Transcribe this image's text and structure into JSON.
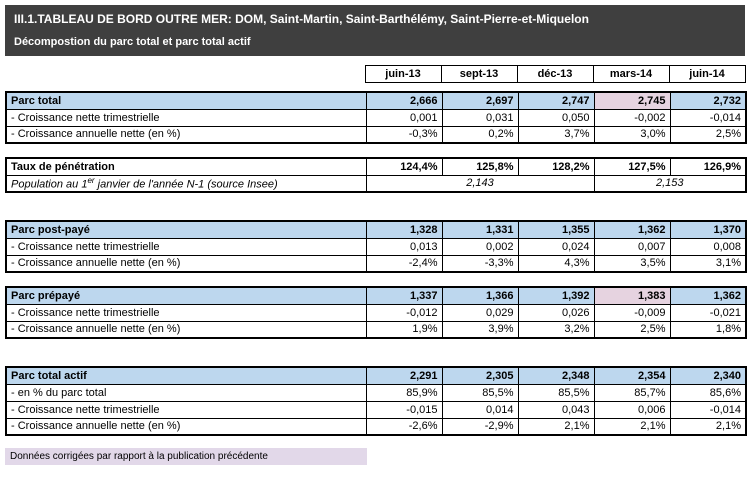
{
  "page": {
    "title": "III.1.TABLEAU DE BORD OUTRE MER: DOM, Saint-Martin, Saint-Barthélémy, Saint-Pierre-et-Miquelon",
    "subtitle": "Décompostion du parc total et parc total actif",
    "footnote": "Données corrigées par rapport à la publication précédente"
  },
  "columns": [
    "juin-13",
    "sept-13",
    "déc-13",
    "mars-14",
    "juin-14"
  ],
  "colors": {
    "title_bg": "#3f3f3f",
    "section_header_bg": "#bdd7ee",
    "corrected_cell_bg": "#e6d3e0",
    "footnote_bg": "#e2d8e9",
    "border": "#000000"
  },
  "parc_total": {
    "label": "Parc total",
    "values": [
      "2,666",
      "2,697",
      "2,747",
      "2,745",
      "2,732"
    ],
    "corrected_column": "mars-14",
    "rows": [
      {
        "label": "- Croissance nette trimestrielle",
        "values": [
          "0,001",
          "0,031",
          "0,050",
          "-0,002",
          "-0,014"
        ]
      },
      {
        "label": "- Croissance annuelle nette (en %)",
        "values": [
          "-0,3%",
          "0,2%",
          "3,7%",
          "3,0%",
          "2,5%"
        ]
      }
    ]
  },
  "taux_penetration": {
    "label": "Taux de pénétration",
    "values": [
      "124,4%",
      "125,8%",
      "128,2%",
      "127,5%",
      "126,9%"
    ],
    "population": {
      "label_prefix": "Population au 1",
      "label_sup": "er",
      "label_suffix": " janvier de l'année N-1 (source Insee)",
      "value_2013": "2,143",
      "value_2014": "2,153"
    }
  },
  "parc_post_paye": {
    "label": "Parc post-payé",
    "values": [
      "1,328",
      "1,331",
      "1,355",
      "1,362",
      "1,370"
    ],
    "rows": [
      {
        "label": "- Croissance nette trimestrielle",
        "values": [
          "0,013",
          "0,002",
          "0,024",
          "0,007",
          "0,008"
        ]
      },
      {
        "label": "- Croissance annuelle nette (en %)",
        "values": [
          "-2,4%",
          "-3,3%",
          "4,3%",
          "3,5%",
          "3,1%"
        ]
      }
    ]
  },
  "parc_prepaye": {
    "label": "Parc prépayé",
    "values": [
      "1,337",
      "1,366",
      "1,392",
      "1,383",
      "1,362"
    ],
    "corrected_column": "mars-14",
    "rows": [
      {
        "label": "- Croissance nette trimestrielle",
        "values": [
          "-0,012",
          "0,029",
          "0,026",
          "-0,009",
          "-0,021"
        ]
      },
      {
        "label": "- Croissance annuelle nette (en %)",
        "values": [
          "1,9%",
          "3,9%",
          "3,2%",
          "2,5%",
          "1,8%"
        ]
      }
    ]
  },
  "parc_total_actif": {
    "label": "Parc total actif",
    "values": [
      "2,291",
      "2,305",
      "2,348",
      "2,354",
      "2,340"
    ],
    "rows": [
      {
        "label": "- en % du parc total",
        "values": [
          "85,9%",
          "85,5%",
          "85,5%",
          "85,7%",
          "85,6%"
        ]
      },
      {
        "label": "- Croissance nette trimestrielle",
        "values": [
          "-0,015",
          "0,014",
          "0,043",
          "0,006",
          "-0,014"
        ]
      },
      {
        "label": "- Croissance annuelle nette (en %)",
        "values": [
          "-2,6%",
          "-2,9%",
          "2,1%",
          "2,1%",
          "2,1%"
        ]
      }
    ]
  }
}
